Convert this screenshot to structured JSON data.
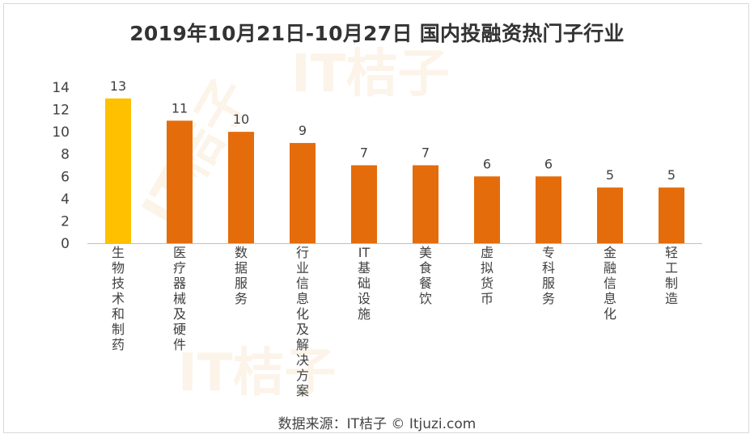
{
  "title": "2019年10月21日-10月27日 国内投融资热门子行业",
  "source": "数据来源：IT桔子 © Itjuzi.com",
  "watermark_text": "IT桔子",
  "colors": {
    "highlight_bar": "#FFC000",
    "bar": "#E46C0A",
    "axis_line": "#bfbfbf",
    "text": "#404040"
  },
  "chart_data": {
    "type": "bar",
    "title": "2019年10月21日-10月27日 国内投融资热门子行业",
    "categories": [
      "生物技术和制药",
      "医疗器械及硬件",
      "数据服务",
      "行业信息化及解决方案",
      "IT基础设施",
      "美食餐饮",
      "虚拟货币",
      "专科服务",
      "金融信息化",
      "轻工制造"
    ],
    "values": [
      13,
      11,
      10,
      9,
      7,
      7,
      6,
      6,
      5,
      5
    ],
    "ylim": [
      0,
      14
    ],
    "yticks": [
      0,
      2,
      4,
      6,
      8,
      10,
      12,
      14
    ],
    "grid": false,
    "legend": "none",
    "xlabel": "",
    "ylabel": ""
  }
}
